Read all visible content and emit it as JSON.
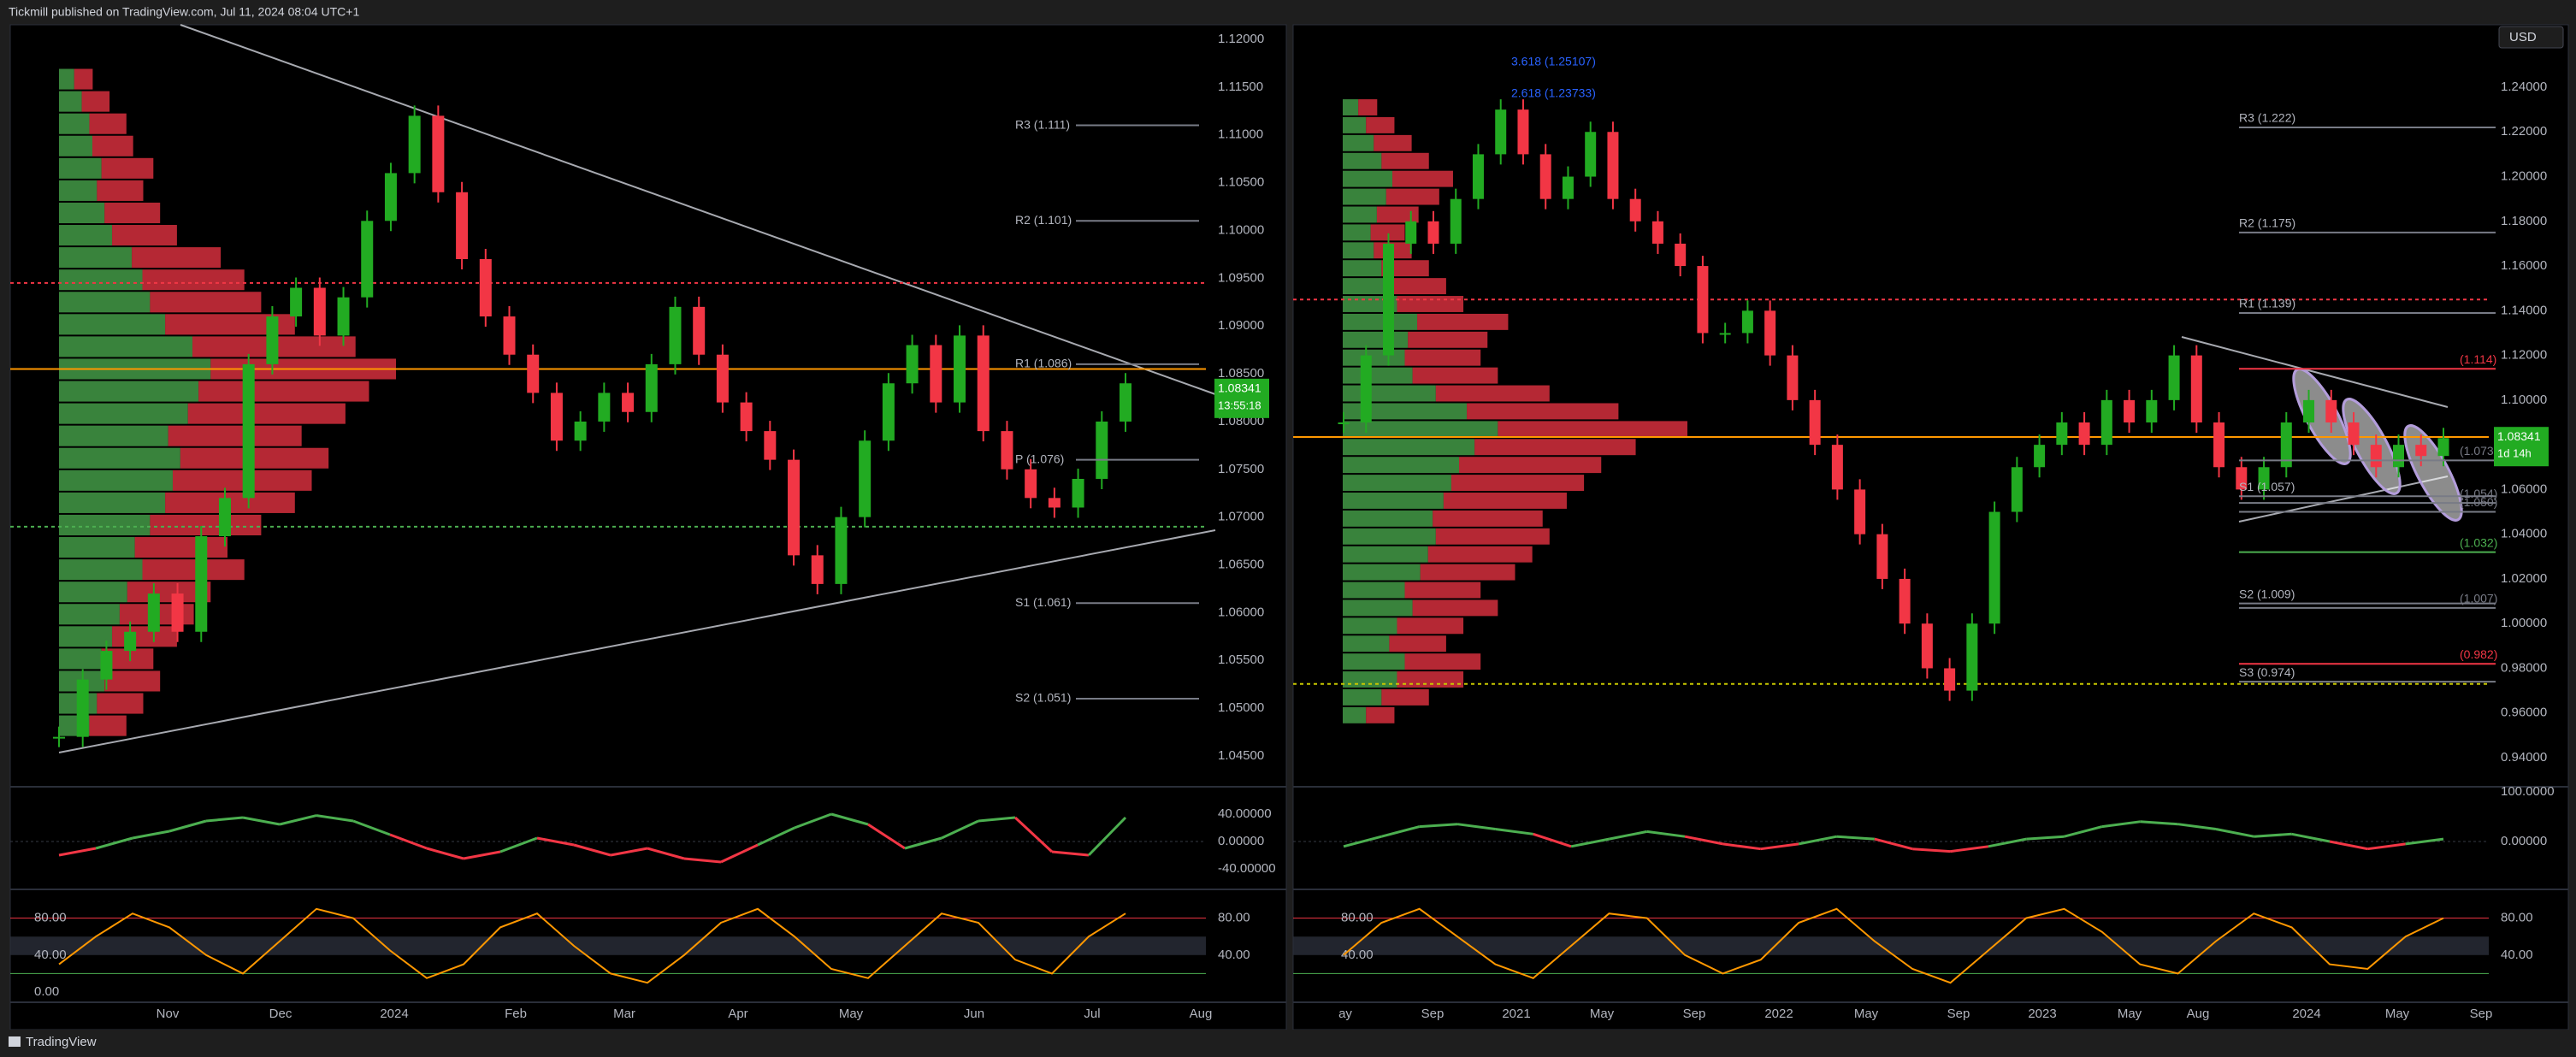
{
  "header": {
    "text": "Tickmill published on TradingView.com, Jul 11, 2024 08:04 UTC+1"
  },
  "footer": {
    "brand": "TradingView"
  },
  "currency_button": "USD",
  "panels": [
    {
      "price_ticks": [
        {
          "value": 1.12,
          "label": "1.12000"
        },
        {
          "value": 1.115,
          "label": "1.11500"
        },
        {
          "value": 1.11,
          "label": "1.11000"
        },
        {
          "value": 1.105,
          "label": "1.10500"
        },
        {
          "value": 1.1,
          "label": "1.10000"
        },
        {
          "value": 1.095,
          "label": "1.09500"
        },
        {
          "value": 1.09,
          "label": "1.09000"
        },
        {
          "value": 1.085,
          "label": "1.08500"
        },
        {
          "value": 1.08,
          "label": "1.08000"
        },
        {
          "value": 1.075,
          "label": "1.07500"
        },
        {
          "value": 1.07,
          "label": "1.07000"
        },
        {
          "value": 1.065,
          "label": "1.06500"
        },
        {
          "value": 1.06,
          "label": "1.06000"
        },
        {
          "value": 1.055,
          "label": "1.05500"
        },
        {
          "value": 1.05,
          "label": "1.05000"
        },
        {
          "value": 1.045,
          "label": "1.04500"
        }
      ],
      "time_labels": [
        "Nov",
        "Dec",
        "2024",
        "Feb",
        "Mar",
        "Apr",
        "May",
        "Jun",
        "Jul",
        "Aug"
      ],
      "close": [
        1.047,
        1.053,
        1.056,
        1.058,
        1.062,
        1.058,
        1.068,
        1.072,
        1.086,
        1.091,
        1.094,
        1.089,
        1.093,
        1.101,
        1.106,
        1.112,
        1.104,
        1.097,
        1.091,
        1.087,
        1.083,
        1.078,
        1.08,
        1.083,
        1.081,
        1.086,
        1.092,
        1.087,
        1.082,
        1.079,
        1.076,
        1.066,
        1.063,
        1.07,
        1.078,
        1.084,
        1.088,
        1.082,
        1.089,
        1.079,
        1.075,
        1.072,
        1.071,
        1.074,
        1.08,
        1.084
      ],
      "last_price": {
        "value": 1.08341,
        "label": "1.08341",
        "countdown": "13:55:18"
      },
      "poc": 1.0855,
      "levels": [
        {
          "value": 1.0945,
          "color": "#f23645"
        },
        {
          "value": 1.069,
          "color": "#4caf50"
        }
      ],
      "pivots": [
        {
          "label": "R3 (1.111)",
          "value": 1.111
        },
        {
          "label": "R2 (1.101)",
          "value": 1.101
        },
        {
          "label": "R1 (1.086)",
          "value": 1.086
        },
        {
          "label": "P (1.076)",
          "value": 1.076
        },
        {
          "label": "S1 (1.061)",
          "value": 1.061
        },
        {
          "label": "S2 (1.051)",
          "value": 1.051
        }
      ],
      "volume_profile": {
        "low": 1.047,
        "high": 1.117,
        "values": [
          20,
          25,
          30,
          28,
          35,
          40,
          45,
          55,
          50,
          60,
          70,
          75,
          80,
          72,
          85,
          92,
          100,
          88,
          70,
          60,
          55,
          48,
          35,
          30,
          25,
          28,
          22,
          20,
          15,
          10
        ]
      },
      "osc1": {
        "ticks": [
          {
            "value": 40,
            "label": "40.00000"
          },
          {
            "value": 0,
            "label": "0.00000"
          },
          {
            "value": -40,
            "label": "-40.00000"
          }
        ],
        "values": [
          -20,
          -10,
          5,
          15,
          30,
          35,
          25,
          38,
          30,
          10,
          -10,
          -25,
          -15,
          5,
          -5,
          -20,
          -10,
          -25,
          -30,
          -5,
          20,
          40,
          25,
          -10,
          5,
          30,
          35,
          -15,
          -20,
          35
        ]
      },
      "osc2": {
        "ticks": [
          {
            "value": 80,
            "label": "80.00"
          },
          {
            "value": 40,
            "label": "40.00"
          }
        ],
        "left_ticks": [
          {
            "value": 80,
            "label": "80.00"
          },
          {
            "value": 40,
            "label": "40.00"
          },
          {
            "value": 0,
            "label": "0.00"
          }
        ],
        "values": [
          30,
          60,
          85,
          70,
          40,
          20,
          55,
          90,
          80,
          45,
          15,
          30,
          70,
          85,
          50,
          20,
          10,
          40,
          75,
          90,
          60,
          25,
          15,
          50,
          85,
          75,
          35,
          20,
          60,
          85
        ]
      }
    },
    {
      "price_ticks": [
        {
          "value": 1.24,
          "label": "1.24000"
        },
        {
          "value": 1.22,
          "label": "1.22000"
        },
        {
          "value": 1.2,
          "label": "1.20000"
        },
        {
          "value": 1.18,
          "label": "1.18000"
        },
        {
          "value": 1.16,
          "label": "1.16000"
        },
        {
          "value": 1.14,
          "label": "1.14000"
        },
        {
          "value": 1.12,
          "label": "1.12000"
        },
        {
          "value": 1.1,
          "label": "1.10000"
        },
        {
          "value": 1.08,
          "label": "1.08000"
        },
        {
          "value": 1.06,
          "label": "1.06000"
        },
        {
          "value": 1.04,
          "label": "1.04000"
        },
        {
          "value": 1.02,
          "label": "1.02000"
        },
        {
          "value": 1,
          "label": "1.00000"
        },
        {
          "value": 0.98,
          "label": "0.98000"
        },
        {
          "value": 0.96,
          "label": "0.96000"
        },
        {
          "value": 0.94,
          "label": "0.94000"
        }
      ],
      "time_labels": [
        "ay",
        "Sep",
        "2021",
        "May",
        "Sep",
        "2022",
        "May",
        "Sep",
        "2023",
        "May",
        "Aug",
        "2024",
        "May",
        "Sep"
      ],
      "close": [
        1.09,
        1.12,
        1.17,
        1.18,
        1.17,
        1.19,
        1.21,
        1.23,
        1.21,
        1.19,
        1.2,
        1.22,
        1.19,
        1.18,
        1.17,
        1.16,
        1.13,
        1.13,
        1.14,
        1.12,
        1.1,
        1.08,
        1.06,
        1.04,
        1.02,
        1,
        0.98,
        0.97,
        1,
        1.05,
        1.07,
        1.08,
        1.09,
        1.08,
        1.1,
        1.09,
        1.1,
        1.12,
        1.09,
        1.07,
        1.06,
        1.07,
        1.09,
        1.1,
        1.09,
        1.08,
        1.07,
        1.08,
        1.075,
        1.083
      ],
      "last_price": {
        "value": 1.08341,
        "label": "1.08341",
        "countdown": "1d 14h"
      },
      "poc": 1.0835,
      "levels": [
        {
          "value": 1.145,
          "color": "#f23645"
        },
        {
          "value": 0.973,
          "color": "#c8c800"
        }
      ],
      "pivots": [
        {
          "label": "R3 (1.222)",
          "value": 1.222
        },
        {
          "label": "R2 (1.175)",
          "value": 1.175
        },
        {
          "label": "R1 (1.139)",
          "value": 1.139
        },
        {
          "label": "S1 (1.057)",
          "value": 1.057
        },
        {
          "label": "S2 (1.009)",
          "value": 1.009
        },
        {
          "label": "S3 (0.974)",
          "value": 0.974
        }
      ],
      "edge_levels": [
        {
          "label": "(1.114)",
          "value": 1.114,
          "color": "#f23645"
        },
        {
          "label": "(1.073)",
          "value": 1.073,
          "color": "#787b86"
        },
        {
          "label": "(1.054)",
          "value": 1.054,
          "color": "#787b86"
        },
        {
          "label": "(1.050)",
          "value": 1.05,
          "color": "#787b86"
        },
        {
          "label": "(1.032)",
          "value": 1.032,
          "color": "#4caf50"
        },
        {
          "label": "(1.007)",
          "value": 1.007,
          "color": "#787b86"
        },
        {
          "label": "(0.982)",
          "value": 0.982,
          "color": "#f23645"
        }
      ],
      "fib_labels": [
        "3.618 (1.25107)",
        "2.618 (1.23733)"
      ],
      "volume_profile": {
        "low": 0.955,
        "high": 1.235,
        "values": [
          15,
          25,
          35,
          40,
          30,
          35,
          45,
          40,
          50,
          55,
          60,
          58,
          65,
          70,
          75,
          85,
          100,
          80,
          60,
          45,
          40,
          42,
          48,
          35,
          30,
          25,
          20,
          18,
          22,
          28,
          32,
          25,
          20,
          15,
          10
        ]
      },
      "osc1": {
        "ticks": [
          {
            "value": 100,
            "label": "100.0000"
          },
          {
            "value": 0,
            "label": "0.00000"
          }
        ],
        "values": [
          -10,
          10,
          30,
          35,
          25,
          15,
          -10,
          5,
          20,
          10,
          -5,
          -15,
          -5,
          10,
          5,
          -15,
          -20,
          -10,
          5,
          10,
          30,
          40,
          35,
          25,
          10,
          15,
          0,
          -15,
          -5,
          5
        ]
      },
      "osc2": {
        "ticks": [
          {
            "value": 80,
            "label": "80.00"
          },
          {
            "value": 40,
            "label": "40.00"
          }
        ],
        "left_ticks": [
          {
            "value": 80,
            "label": "80.00"
          },
          {
            "value": 40,
            "label": "40.00"
          }
        ],
        "values": [
          40,
          75,
          90,
          60,
          30,
          15,
          50,
          85,
          80,
          40,
          20,
          35,
          75,
          90,
          55,
          25,
          10,
          45,
          80,
          90,
          65,
          30,
          20,
          55,
          85,
          70,
          30,
          25,
          60,
          80
        ]
      }
    }
  ]
}
